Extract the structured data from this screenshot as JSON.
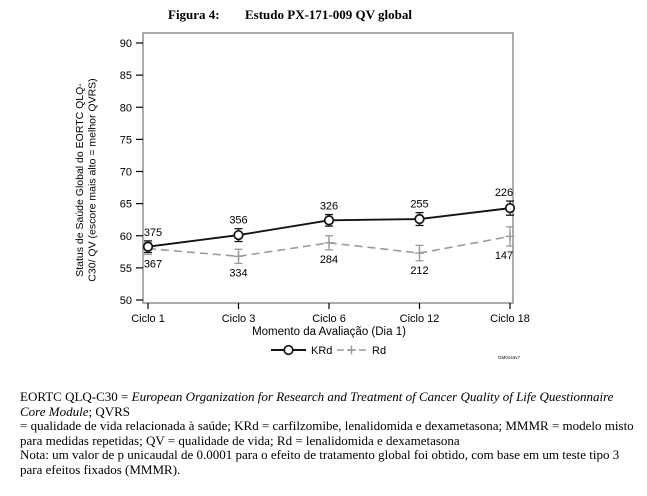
{
  "figure": {
    "label": "Figura 4:",
    "title": "Estudo PX-171-009 QV global"
  },
  "chart_data": {
    "type": "line",
    "title": "Estudo PX-171-009 QV global",
    "categories": [
      "Ciclo 1",
      "Ciclo 3",
      "Ciclo 6",
      "Ciclo 12",
      "Ciclo 18"
    ],
    "xlabel": "Momento da Avaliação (Dia 1)",
    "ylabel_lines": [
      "Status de Saúde Global do EORTC QLQ-",
      "C30/ QV (escore mais alto = melhor QVRS)"
    ],
    "ylim": [
      50,
      90
    ],
    "yticks": [
      50,
      55,
      60,
      65,
      70,
      75,
      80,
      85,
      90
    ],
    "grid": false,
    "legend_position": "bottom-center",
    "series": [
      {
        "name": "KRd",
        "color": "#141414",
        "line_style": "solid",
        "marker": "circle",
        "values": [
          58.3,
          60.1,
          62.4,
          62.6,
          64.3
        ],
        "error_bars": [
          0.9,
          1.0,
          0.9,
          1.0,
          1.1
        ],
        "n_labels": [
          "375",
          "356",
          "326",
          "255",
          "226"
        ],
        "n_label_position": "above"
      },
      {
        "name": "Rd",
        "color": "#9a9a9a",
        "line_style": "dashed",
        "marker": "plus",
        "values": [
          58.0,
          56.8,
          58.9,
          57.3,
          59.9
        ],
        "error_bars": [
          0.9,
          1.1,
          1.1,
          1.2,
          1.5
        ],
        "n_labels": [
          "367",
          "334",
          "284",
          "212",
          "147"
        ],
        "n_label_position": "below"
      }
    ],
    "plot_code": "GM0143v7"
  },
  "footnotes": {
    "line1_prefix": "EORTC QLQ-C30 = ",
    "line1_italic": "European Organization for Research and Treatment of Cancer Quality of Life Questionnaire Core Module",
    "line1_suffix": "; QVRS",
    "definitions": "= qualidade de vida relacionada à saúde; KRd = carfilzomibe, lenalidomida e dexametasona; MMMR = modelo misto para medidas repetidas; QV = qualidade de vida; Rd = lenalidomida e dexametasona",
    "note": "Nota: um valor de p unicaudal de 0.0001 para o efeito de tratamento global foi obtido, com base em um teste tipo 3 para efeitos fixados (MMMR)."
  }
}
